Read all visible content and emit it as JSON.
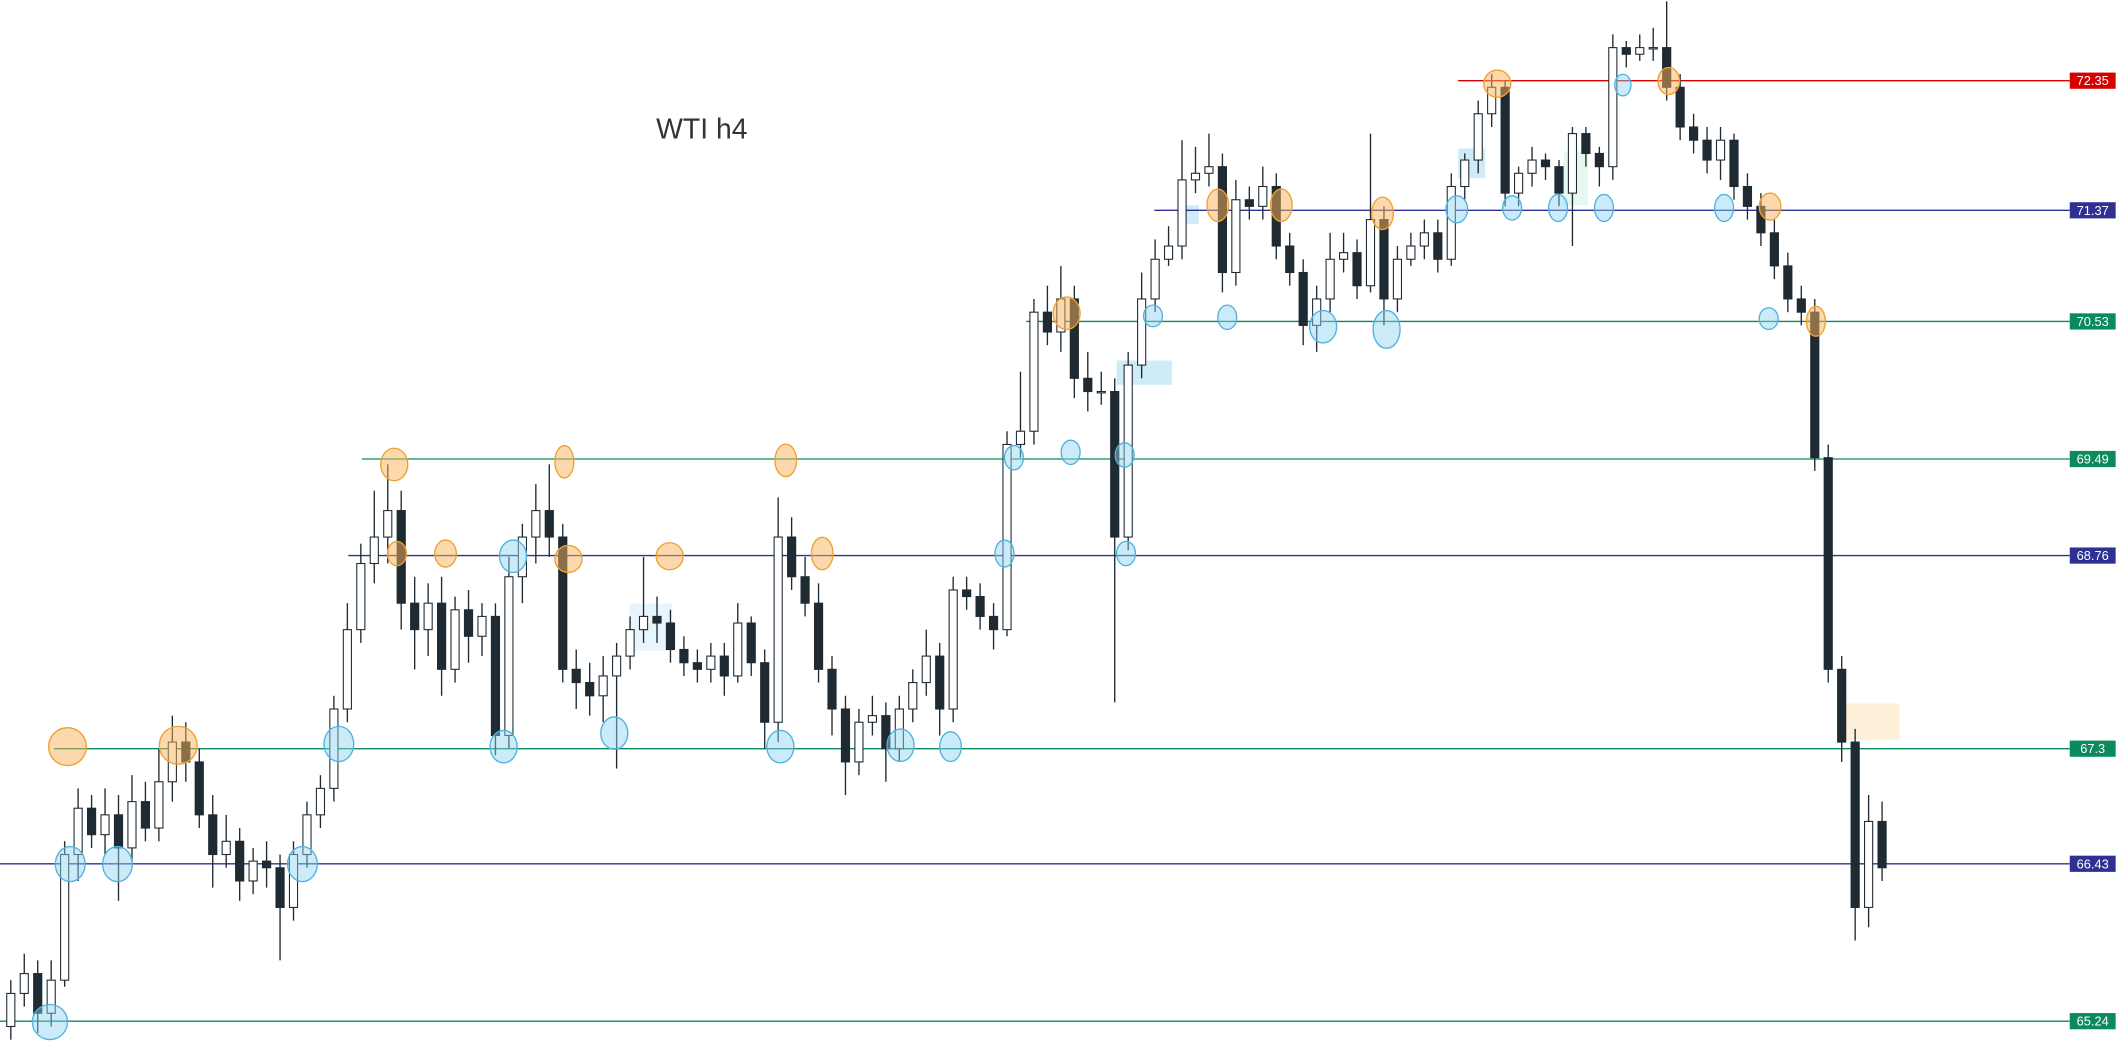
{
  "chart_data": {
    "type": "candlestick",
    "title": "WTI h4",
    "ylim": [
      65.06,
      72.96
    ],
    "up_color": "#ffffff",
    "down_color": "#1f2a33",
    "wick_color": "#1f2a33",
    "levels": [
      {
        "value": 72.35,
        "color": "#d50000"
      },
      {
        "value": 71.37,
        "color": "#2e3192"
      },
      {
        "value": 70.53,
        "color": "#0b8a5b"
      },
      {
        "value": 69.49,
        "color": "#0b8a5b"
      },
      {
        "value": 68.76,
        "color": "#2e3192"
      },
      {
        "value": 67.3,
        "color": "#0b8a5b"
      },
      {
        "value": 66.43,
        "color": "#2e3192"
      },
      {
        "value": 65.24,
        "color": "#0b8a5b"
      }
    ],
    "candles": [
      [
        65.2,
        65.55,
        65.1,
        65.45
      ],
      [
        65.45,
        65.75,
        65.35,
        65.6
      ],
      [
        65.6,
        65.7,
        65.15,
        65.3
      ],
      [
        65.3,
        65.7,
        65.2,
        65.55
      ],
      [
        65.55,
        66.6,
        65.5,
        66.5
      ],
      [
        66.5,
        67.0,
        66.3,
        66.85
      ],
      [
        66.85,
        66.95,
        66.55,
        66.65
      ],
      [
        66.65,
        67.0,
        66.5,
        66.8
      ],
      [
        66.8,
        66.95,
        66.15,
        66.55
      ],
      [
        66.55,
        67.1,
        66.45,
        66.9
      ],
      [
        66.9,
        67.05,
        66.6,
        66.7
      ],
      [
        66.7,
        67.3,
        66.6,
        67.05
      ],
      [
        67.05,
        67.55,
        66.9,
        67.35
      ],
      [
        67.35,
        67.5,
        67.05,
        67.2
      ],
      [
        67.2,
        67.3,
        66.7,
        66.8
      ],
      [
        66.8,
        66.95,
        66.25,
        66.5
      ],
      [
        66.5,
        66.8,
        66.4,
        66.6
      ],
      [
        66.6,
        66.7,
        66.15,
        66.3
      ],
      [
        66.3,
        66.55,
        66.2,
        66.45
      ],
      [
        66.45,
        66.6,
        66.25,
        66.4
      ],
      [
        66.4,
        66.5,
        65.7,
        66.1
      ],
      [
        66.1,
        66.6,
        66.0,
        66.5
      ],
      [
        66.5,
        66.9,
        66.4,
        66.8
      ],
      [
        66.8,
        67.1,
        66.7,
        67.0
      ],
      [
        67.0,
        67.7,
        66.9,
        67.6
      ],
      [
        67.6,
        68.4,
        67.5,
        68.2
      ],
      [
        68.2,
        68.85,
        68.1,
        68.7
      ],
      [
        68.7,
        69.25,
        68.55,
        68.9
      ],
      [
        68.9,
        69.45,
        68.7,
        69.1
      ],
      [
        69.1,
        69.25,
        68.2,
        68.4
      ],
      [
        68.4,
        68.6,
        67.9,
        68.2
      ],
      [
        68.2,
        68.55,
        68.0,
        68.4
      ],
      [
        68.4,
        68.6,
        67.7,
        67.9
      ],
      [
        67.9,
        68.45,
        67.8,
        68.35
      ],
      [
        68.35,
        68.5,
        67.95,
        68.15
      ],
      [
        68.15,
        68.4,
        68.0,
        68.3
      ],
      [
        68.3,
        68.4,
        67.25,
        67.4
      ],
      [
        67.4,
        68.75,
        67.3,
        68.6
      ],
      [
        68.6,
        69.0,
        68.4,
        68.9
      ],
      [
        68.9,
        69.3,
        68.7,
        69.1
      ],
      [
        69.1,
        69.45,
        68.75,
        68.9
      ],
      [
        68.9,
        69.0,
        67.8,
        67.9
      ],
      [
        67.9,
        68.05,
        67.6,
        67.8
      ],
      [
        67.8,
        67.95,
        67.55,
        67.7
      ],
      [
        67.7,
        68.0,
        67.5,
        67.85
      ],
      [
        67.85,
        68.1,
        67.15,
        68.0
      ],
      [
        68.0,
        68.3,
        67.9,
        68.2
      ],
      [
        68.2,
        68.75,
        68.1,
        68.3
      ],
      [
        68.3,
        68.45,
        68.1,
        68.25
      ],
      [
        68.25,
        68.35,
        67.95,
        68.05
      ],
      [
        68.05,
        68.15,
        67.85,
        67.95
      ],
      [
        67.95,
        68.05,
        67.8,
        67.9
      ],
      [
        67.9,
        68.1,
        67.8,
        68.0
      ],
      [
        68.0,
        68.1,
        67.7,
        67.85
      ],
      [
        67.85,
        68.4,
        67.8,
        68.25
      ],
      [
        68.25,
        68.3,
        67.85,
        67.95
      ],
      [
        67.95,
        68.05,
        67.3,
        67.5
      ],
      [
        67.5,
        69.2,
        67.35,
        68.9
      ],
      [
        68.9,
        69.05,
        68.5,
        68.6
      ],
      [
        68.6,
        68.75,
        68.3,
        68.4
      ],
      [
        68.4,
        68.55,
        67.8,
        67.9
      ],
      [
        67.9,
        68.0,
        67.4,
        67.6
      ],
      [
        67.6,
        67.7,
        66.95,
        67.2
      ],
      [
        67.2,
        67.6,
        67.1,
        67.5
      ],
      [
        67.5,
        67.7,
        67.4,
        67.55
      ],
      [
        67.55,
        67.65,
        67.05,
        67.3
      ],
      [
        67.3,
        67.7,
        67.2,
        67.6
      ],
      [
        67.6,
        67.9,
        67.5,
        67.8
      ],
      [
        67.8,
        68.2,
        67.7,
        68.0
      ],
      [
        68.0,
        68.1,
        67.4,
        67.6
      ],
      [
        67.6,
        68.6,
        67.5,
        68.5
      ],
      [
        68.5,
        68.6,
        68.35,
        68.45
      ],
      [
        68.45,
        68.55,
        68.2,
        68.3
      ],
      [
        68.3,
        68.4,
        68.05,
        68.2
      ],
      [
        68.2,
        69.7,
        68.15,
        69.6
      ],
      [
        69.6,
        70.15,
        69.5,
        69.7
      ],
      [
        69.7,
        70.7,
        69.6,
        70.6
      ],
      [
        70.6,
        70.8,
        70.35,
        70.45
      ],
      [
        70.45,
        70.95,
        70.3,
        70.7
      ],
      [
        70.7,
        70.8,
        69.95,
        70.1
      ],
      [
        70.1,
        70.3,
        69.85,
        70.0
      ],
      [
        70.0,
        70.15,
        69.9,
        70.0
      ],
      [
        70.0,
        70.1,
        67.65,
        68.9
      ],
      [
        68.9,
        70.3,
        68.8,
        70.2
      ],
      [
        70.2,
        70.9,
        70.1,
        70.7
      ],
      [
        70.7,
        71.15,
        70.6,
        71.0
      ],
      [
        71.0,
        71.25,
        70.95,
        71.1
      ],
      [
        71.1,
        71.9,
        71.0,
        71.6
      ],
      [
        71.6,
        71.85,
        71.5,
        71.65
      ],
      [
        71.65,
        71.95,
        71.55,
        71.7
      ],
      [
        71.7,
        71.8,
        70.75,
        70.9
      ],
      [
        70.9,
        71.6,
        70.8,
        71.45
      ],
      [
        71.45,
        71.55,
        71.3,
        71.4
      ],
      [
        71.4,
        71.7,
        71.3,
        71.55
      ],
      [
        71.55,
        71.65,
        71.0,
        71.1
      ],
      [
        71.1,
        71.2,
        70.8,
        70.9
      ],
      [
        70.9,
        71.0,
        70.35,
        70.5
      ],
      [
        70.5,
        70.8,
        70.3,
        70.7
      ],
      [
        70.7,
        71.2,
        70.6,
        71.0
      ],
      [
        71.0,
        71.2,
        70.9,
        71.05
      ],
      [
        71.05,
        71.15,
        70.7,
        70.8
      ],
      [
        70.8,
        71.95,
        70.75,
        71.3
      ],
      [
        71.3,
        71.4,
        70.5,
        70.7
      ],
      [
        70.7,
        71.1,
        70.6,
        71.0
      ],
      [
        71.0,
        71.2,
        70.95,
        71.1
      ],
      [
        71.1,
        71.3,
        71.0,
        71.2
      ],
      [
        71.2,
        71.3,
        70.9,
        71.0
      ],
      [
        71.0,
        71.65,
        70.95,
        71.55
      ],
      [
        71.55,
        71.8,
        71.45,
        71.75
      ],
      [
        71.75,
        72.2,
        71.65,
        72.1
      ],
      [
        72.1,
        72.4,
        72.0,
        72.3
      ],
      [
        72.3,
        72.35,
        71.4,
        71.5
      ],
      [
        71.5,
        71.7,
        71.4,
        71.65
      ],
      [
        71.65,
        71.85,
        71.55,
        71.75
      ],
      [
        71.75,
        71.8,
        71.6,
        71.7
      ],
      [
        71.7,
        71.75,
        71.4,
        71.5
      ],
      [
        71.5,
        72.0,
        71.1,
        71.95
      ],
      [
        71.95,
        72.0,
        71.7,
        71.8
      ],
      [
        71.8,
        71.85,
        71.55,
        71.7
      ],
      [
        71.7,
        72.7,
        71.6,
        72.6
      ],
      [
        72.6,
        72.65,
        72.45,
        72.55
      ],
      [
        72.55,
        72.7,
        72.5,
        72.6
      ],
      [
        72.6,
        72.75,
        72.5,
        72.6
      ],
      [
        72.6,
        72.95,
        72.2,
        72.3
      ],
      [
        72.3,
        72.4,
        71.9,
        72.0
      ],
      [
        72.0,
        72.1,
        71.8,
        71.9
      ],
      [
        71.9,
        72.0,
        71.65,
        71.75
      ],
      [
        71.75,
        72.0,
        71.6,
        71.9
      ],
      [
        71.9,
        71.95,
        71.45,
        71.55
      ],
      [
        71.55,
        71.65,
        71.3,
        71.4
      ],
      [
        71.4,
        71.5,
        71.1,
        71.2
      ],
      [
        71.2,
        71.3,
        70.85,
        70.95
      ],
      [
        70.95,
        71.05,
        70.6,
        70.7
      ],
      [
        70.7,
        70.8,
        70.5,
        70.6
      ],
      [
        70.6,
        70.7,
        69.4,
        69.5
      ],
      [
        69.5,
        69.6,
        67.8,
        67.9
      ],
      [
        67.9,
        68.0,
        67.2,
        67.35
      ],
      [
        67.35,
        67.45,
        65.85,
        66.1
      ],
      [
        66.1,
        66.95,
        65.95,
        66.75
      ],
      [
        66.75,
        66.9,
        66.3,
        66.4
      ]
    ]
  }
}
